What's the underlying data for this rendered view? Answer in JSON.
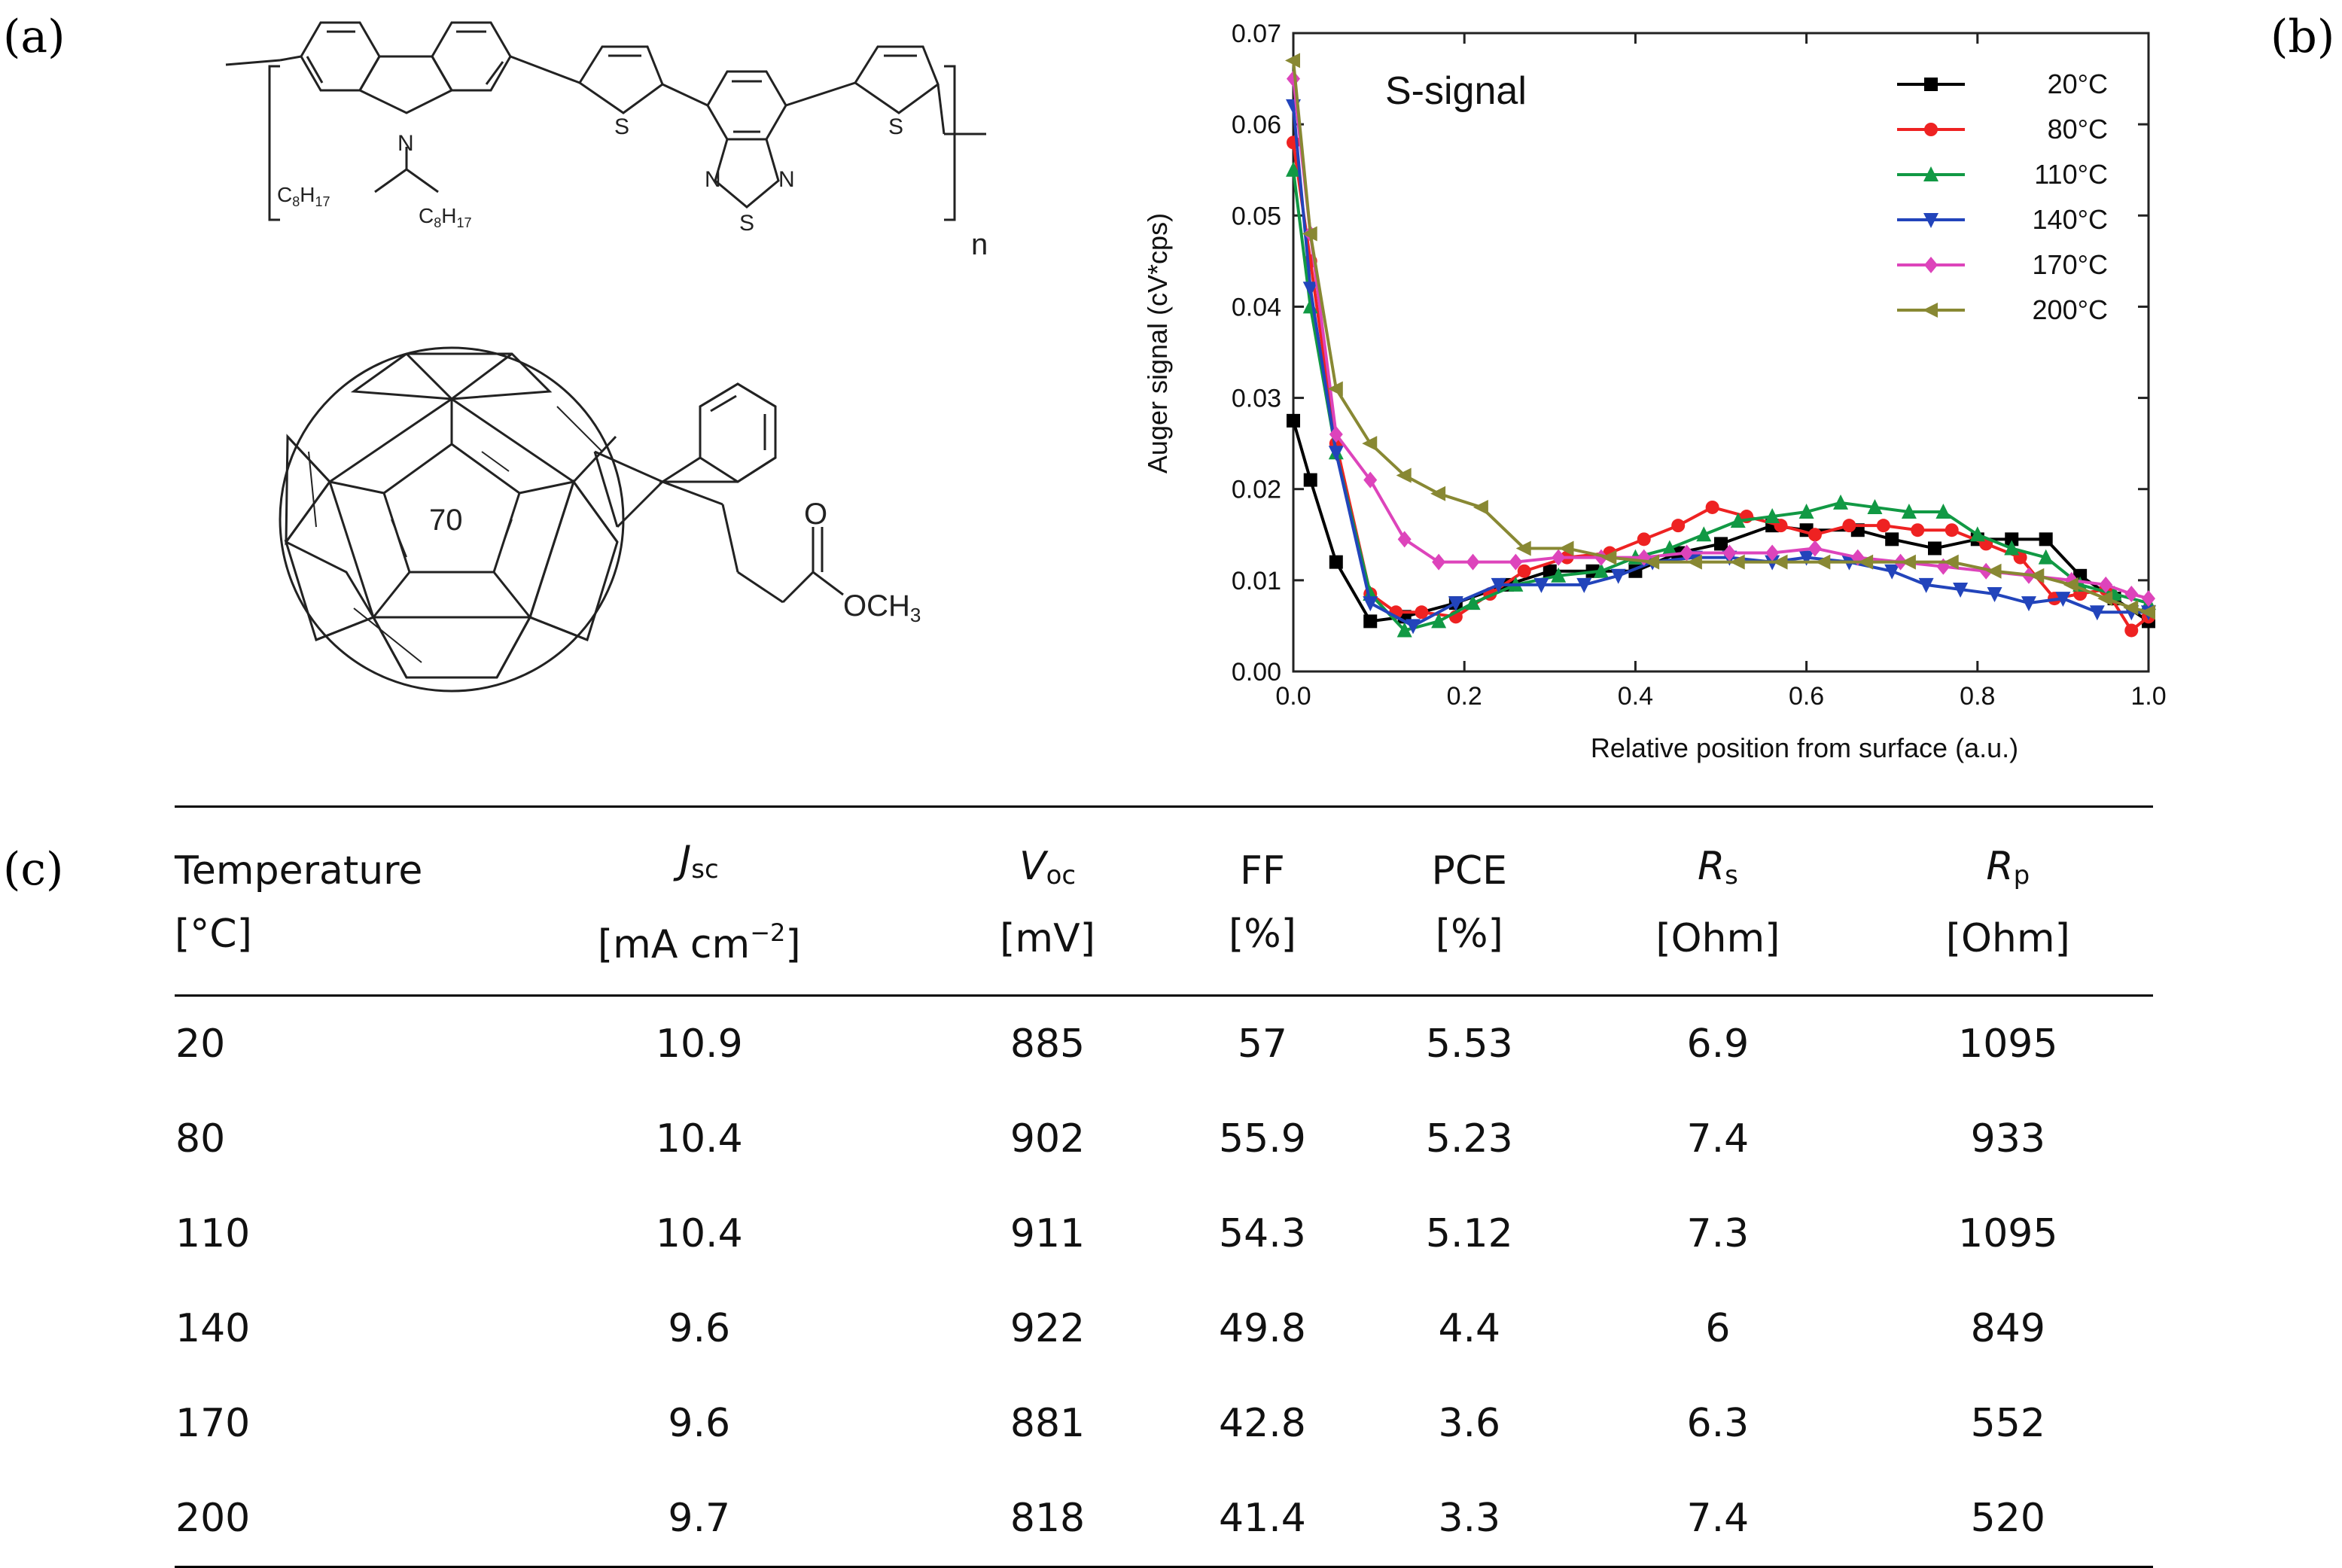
{
  "panels": {
    "a": "(a)",
    "b": "(b)",
    "c": "(c)"
  },
  "structures": {
    "polymer": {
      "atoms": {
        "N": "N",
        "S1": "S",
        "S2": "S",
        "S3": "S",
        "N1": "N",
        "N2": "N"
      },
      "substituent_left": {
        "base": "C",
        "sub1": "8",
        "mid": "H",
        "sub2": "17"
      },
      "substituent_right": {
        "base": "C",
        "sub1": "8",
        "mid": "H",
        "sub2": "17"
      },
      "repeat_index": "n"
    },
    "fullerene": {
      "core_label": "70",
      "ester_o": "O",
      "ester_group": "OCH",
      "ester_sub": "3"
    }
  },
  "chart_data": {
    "type": "line",
    "title": "S-signal",
    "xlabel": "Relative position from surface (a.u.)",
    "ylabel": "Auger signal (cV*cps)",
    "xlim": [
      0.0,
      1.0
    ],
    "ylim": [
      0.0,
      0.07
    ],
    "xticks": [
      "0.0",
      "0.2",
      "0.4",
      "0.6",
      "0.8",
      "1.0"
    ],
    "yticks": [
      "0.00",
      "0.01",
      "0.02",
      "0.03",
      "0.04",
      "0.05",
      "0.06",
      "0.07"
    ],
    "legend_position": "top-right",
    "series": [
      {
        "name": "20°C",
        "color": "#000000",
        "marker": "square",
        "x": [
          0.0,
          0.02,
          0.05,
          0.09,
          0.13,
          0.19,
          0.25,
          0.3,
          0.35,
          0.4,
          0.45,
          0.5,
          0.56,
          0.6,
          0.66,
          0.7,
          0.75,
          0.8,
          0.84,
          0.88,
          0.92,
          0.96,
          1.0
        ],
        "y": [
          0.0275,
          0.021,
          0.012,
          0.0055,
          0.006,
          0.0075,
          0.0095,
          0.011,
          0.011,
          0.011,
          0.013,
          0.014,
          0.016,
          0.0155,
          0.0155,
          0.0145,
          0.0135,
          0.0145,
          0.0145,
          0.0145,
          0.0105,
          0.008,
          0.0055
        ]
      },
      {
        "name": "80°C",
        "color": "#ee2222",
        "marker": "circle",
        "x": [
          0.0,
          0.02,
          0.05,
          0.09,
          0.12,
          0.15,
          0.19,
          0.23,
          0.27,
          0.32,
          0.37,
          0.41,
          0.45,
          0.49,
          0.53,
          0.57,
          0.61,
          0.65,
          0.69,
          0.73,
          0.77,
          0.81,
          0.85,
          0.89,
          0.92,
          0.95,
          0.98,
          1.0
        ],
        "y": [
          0.058,
          0.045,
          0.025,
          0.0085,
          0.0065,
          0.0065,
          0.006,
          0.0085,
          0.011,
          0.0125,
          0.013,
          0.0145,
          0.016,
          0.018,
          0.017,
          0.016,
          0.015,
          0.016,
          0.016,
          0.0155,
          0.0155,
          0.014,
          0.0125,
          0.008,
          0.0085,
          0.009,
          0.0045,
          0.006
        ]
      },
      {
        "name": "110°C",
        "color": "#119944",
        "marker": "triangle-up",
        "x": [
          0.0,
          0.02,
          0.05,
          0.09,
          0.13,
          0.17,
          0.21,
          0.26,
          0.31,
          0.36,
          0.4,
          0.44,
          0.48,
          0.52,
          0.56,
          0.6,
          0.64,
          0.68,
          0.72,
          0.76,
          0.8,
          0.84,
          0.88,
          0.92,
          0.96,
          1.0
        ],
        "y": [
          0.055,
          0.04,
          0.024,
          0.0085,
          0.0045,
          0.0055,
          0.0075,
          0.0095,
          0.0105,
          0.011,
          0.0125,
          0.0135,
          0.015,
          0.0165,
          0.017,
          0.0175,
          0.0185,
          0.018,
          0.0175,
          0.0175,
          0.015,
          0.0135,
          0.0125,
          0.0095,
          0.0085,
          0.0075
        ]
      },
      {
        "name": "140°C",
        "color": "#2244bb",
        "marker": "triangle-down",
        "x": [
          0.0,
          0.02,
          0.05,
          0.09,
          0.14,
          0.19,
          0.24,
          0.29,
          0.34,
          0.38,
          0.42,
          0.47,
          0.51,
          0.56,
          0.6,
          0.65,
          0.7,
          0.74,
          0.78,
          0.82,
          0.86,
          0.9,
          0.94,
          0.98,
          1.0
        ],
        "y": [
          0.062,
          0.042,
          0.024,
          0.0075,
          0.005,
          0.0075,
          0.0095,
          0.0095,
          0.0095,
          0.0105,
          0.012,
          0.0125,
          0.0125,
          0.012,
          0.0125,
          0.012,
          0.011,
          0.0095,
          0.009,
          0.0085,
          0.0075,
          0.008,
          0.0065,
          0.0065,
          0.0065
        ]
      },
      {
        "name": "170°C",
        "color": "#dd44bb",
        "marker": "diamond",
        "x": [
          0.0,
          0.02,
          0.05,
          0.09,
          0.13,
          0.17,
          0.21,
          0.26,
          0.31,
          0.36,
          0.41,
          0.46,
          0.51,
          0.56,
          0.61,
          0.66,
          0.71,
          0.76,
          0.81,
          0.86,
          0.91,
          0.95,
          0.98,
          1.0
        ],
        "y": [
          0.065,
          0.048,
          0.026,
          0.021,
          0.0145,
          0.012,
          0.012,
          0.012,
          0.0125,
          0.0125,
          0.0125,
          0.013,
          0.013,
          0.013,
          0.0135,
          0.0125,
          0.012,
          0.0115,
          0.011,
          0.0105,
          0.01,
          0.0095,
          0.0085,
          0.008
        ]
      },
      {
        "name": "200°C",
        "color": "#888833",
        "marker": "triangle-left",
        "x": [
          0.0,
          0.02,
          0.05,
          0.09,
          0.13,
          0.17,
          0.22,
          0.27,
          0.32,
          0.37,
          0.42,
          0.47,
          0.52,
          0.57,
          0.62,
          0.67,
          0.72,
          0.77,
          0.82,
          0.87,
          0.91,
          0.95,
          0.98,
          1.0
        ],
        "y": [
          0.067,
          0.048,
          0.031,
          0.025,
          0.0215,
          0.0195,
          0.018,
          0.0135,
          0.0135,
          0.0125,
          0.012,
          0.012,
          0.012,
          0.012,
          0.012,
          0.012,
          0.012,
          0.012,
          0.011,
          0.0105,
          0.0095,
          0.008,
          0.007,
          0.0065
        ]
      }
    ]
  },
  "table": {
    "headers": [
      {
        "l1": "Temperature",
        "l2": "[°C]"
      },
      {
        "sym": "J",
        "sub": "sc",
        "unit_pre": "[mA cm",
        "sup": "−2",
        "unit_post": "]"
      },
      {
        "sym": "V",
        "sub": "oc",
        "l2": "[mV]"
      },
      {
        "l1": "FF",
        "l2": "[%]"
      },
      {
        "l1": "PCE",
        "l2": "[%]"
      },
      {
        "sym": "R",
        "sub": "s",
        "l2": "[Ohm]"
      },
      {
        "sym": "R",
        "sub": "p",
        "l2": "[Ohm]"
      }
    ],
    "rows": [
      [
        "20",
        "10.9",
        "885",
        "57",
        "5.53",
        "6.9",
        "1095"
      ],
      [
        "80",
        "10.4",
        "902",
        "55.9",
        "5.23",
        "7.4",
        "933"
      ],
      [
        "110",
        "10.4",
        "911",
        "54.3",
        "5.12",
        "7.3",
        "1095"
      ],
      [
        "140",
        "9.6",
        "922",
        "49.8",
        "4.4",
        "6",
        "849"
      ],
      [
        "170",
        "9.6",
        "881",
        "42.8",
        "3.6",
        "6.3",
        "552"
      ],
      [
        "200",
        "9.7",
        "818",
        "41.4",
        "3.3",
        "7.4",
        "520"
      ]
    ]
  }
}
